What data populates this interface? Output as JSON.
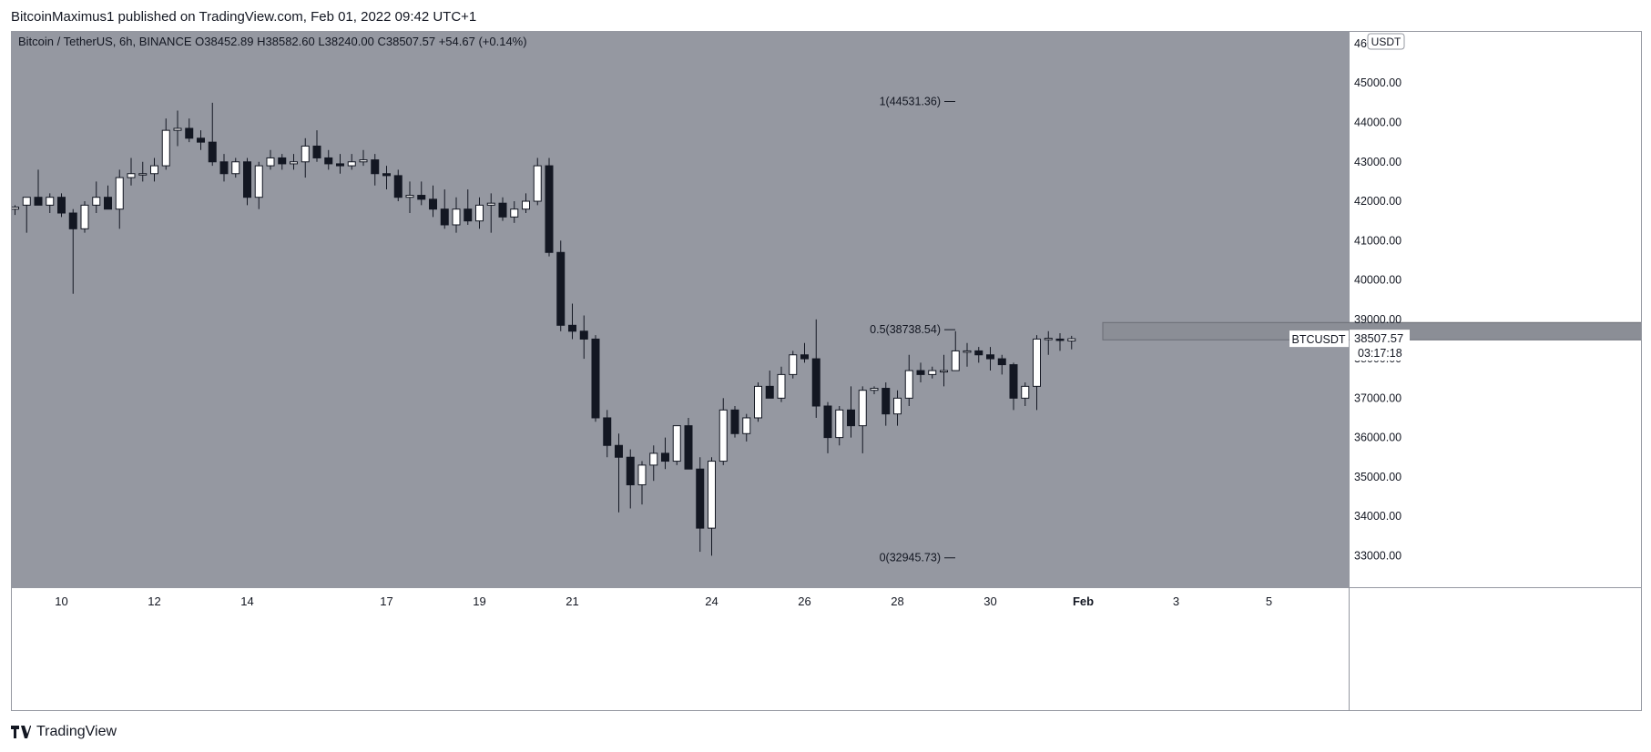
{
  "header": {
    "published_line": "BitcoinMaximus1 published on TradingView.com, Feb 01, 2022 09:42 UTC+1"
  },
  "legend": {
    "symbol_title": "Bitcoin / TetherUS, 6h, BINANCE",
    "o_label": "O",
    "o_value": "38452.89",
    "h_label": "H",
    "h_value": "38582.60",
    "l_label": "L",
    "l_value": "38240.00",
    "c_label": "C",
    "c_value": "38507.57",
    "change": "+54.67 (+0.14%)"
  },
  "price_axis": {
    "currency": "USDT",
    "ticks": [
      "46000.00",
      "45000.00",
      "44000.00",
      "43000.00",
      "42000.00",
      "41000.00",
      "40000.00",
      "39000.00",
      "38000.00",
      "37000.00",
      "36000.00",
      "35000.00",
      "34000.00",
      "33000.00"
    ]
  },
  "symbol_tag": "BTCUSDT",
  "last_price": {
    "value": "38507.57",
    "countdown": "03:17:18"
  },
  "fib_levels": [
    {
      "label": "1(44531.36)",
      "price": 44531.36
    },
    {
      "label": "0.5(38738.54)",
      "price": 38738.54
    },
    {
      "label": "0(32945.73)",
      "price": 32945.73
    }
  ],
  "resistance_zone": {
    "low": 38480,
    "high": 38920,
    "start_index": 94,
    "end_period_index": 210
  },
  "time_axis": {
    "labels": [
      {
        "text": "10",
        "index": 4
      },
      {
        "text": "12",
        "index": 12
      },
      {
        "text": "14",
        "index": 20
      },
      {
        "text": "17",
        "index": 32
      },
      {
        "text": "19",
        "index": 40
      },
      {
        "text": "21",
        "index": 48
      },
      {
        "text": "24",
        "index": 60
      },
      {
        "text": "26",
        "index": 68
      },
      {
        "text": "28",
        "index": 76
      },
      {
        "text": "30",
        "index": 84
      },
      {
        "text": "Feb",
        "index": 92,
        "bold": true
      },
      {
        "text": "3",
        "index": 100
      },
      {
        "text": "5",
        "index": 108
      }
    ]
  },
  "footer": {
    "brand": "TradingView"
  },
  "colors": {
    "plot_background": "#9598a1",
    "axis_background": "#ffffff",
    "up_candle_body": "#ffffff",
    "down_candle_body": "#131722",
    "wick": "#131722",
    "zone_fill": "#8b8e96",
    "tag_background": "#ffffff",
    "text": "#131722"
  },
  "chart_data": {
    "type": "candlestick",
    "title": "Bitcoin / TetherUS, 6h, BINANCE",
    "timeframe": "6h",
    "ylim": [
      32200,
      46300
    ],
    "start_index": 0,
    "candles": [
      [
        41800,
        41900,
        41650,
        41850
      ],
      [
        41900,
        42000,
        41200,
        42100
      ],
      [
        42100,
        42800,
        41900,
        41900
      ],
      [
        41900,
        42200,
        41700,
        42100
      ],
      [
        42100,
        42200,
        41600,
        41700
      ],
      [
        41700,
        41800,
        39650,
        41300
      ],
      [
        41300,
        42000,
        41200,
        41900
      ],
      [
        41900,
        42500,
        41700,
        42100
      ],
      [
        42100,
        42400,
        41800,
        41800
      ],
      [
        41800,
        42800,
        41300,
        42600
      ],
      [
        42600,
        43100,
        42400,
        42700
      ],
      [
        42700,
        43000,
        42500,
        42700
      ],
      [
        42700,
        43100,
        42500,
        42900
      ],
      [
        42900,
        44100,
        42800,
        43800
      ],
      [
        43800,
        44300,
        43400,
        43850
      ],
      [
        43850,
        44100,
        43500,
        43600
      ],
      [
        43600,
        43800,
        43300,
        43500
      ],
      [
        43500,
        44500,
        42900,
        43000
      ],
      [
        43000,
        43200,
        42500,
        42700
      ],
      [
        42700,
        43100,
        42600,
        43000
      ],
      [
        43000,
        43100,
        41900,
        42100
      ],
      [
        42100,
        43000,
        41800,
        42900
      ],
      [
        42900,
        43300,
        42800,
        43100
      ],
      [
        43100,
        43200,
        42800,
        42950
      ],
      [
        42950,
        43200,
        42800,
        43000
      ],
      [
        43000,
        43600,
        42600,
        43400
      ],
      [
        43400,
        43800,
        43000,
        43100
      ],
      [
        43100,
        43300,
        42800,
        42950
      ],
      [
        42950,
        43200,
        42700,
        42900
      ],
      [
        42900,
        43200,
        42800,
        43000
      ],
      [
        43000,
        43300,
        42900,
        43050
      ],
      [
        43050,
        43200,
        42400,
        42700
      ],
      [
        42700,
        42900,
        42300,
        42650
      ],
      [
        42650,
        42800,
        42000,
        42100
      ],
      [
        42100,
        42500,
        41700,
        42150
      ],
      [
        42150,
        42500,
        41900,
        42050
      ],
      [
        42050,
        42400,
        41600,
        41800
      ],
      [
        41800,
        42300,
        41300,
        41400
      ],
      [
        41400,
        42100,
        41200,
        41800
      ],
      [
        41800,
        42300,
        41400,
        41500
      ],
      [
        41500,
        42100,
        41300,
        41900
      ],
      [
        41900,
        42200,
        41200,
        41950
      ],
      [
        41950,
        42100,
        41500,
        41600
      ],
      [
        41600,
        42000,
        41450,
        41800
      ],
      [
        41800,
        42200,
        41700,
        42000
      ],
      [
        42000,
        43100,
        41900,
        42900
      ],
      [
        42900,
        43100,
        40600,
        40700
      ],
      [
        40700,
        41000,
        38700,
        38850
      ],
      [
        38850,
        39400,
        38500,
        38700
      ],
      [
        38700,
        39100,
        38000,
        38500
      ],
      [
        38500,
        38600,
        36400,
        36500
      ],
      [
        36500,
        36700,
        35500,
        35800
      ],
      [
        35800,
        36100,
        34100,
        35500
      ],
      [
        35500,
        35700,
        34200,
        34800
      ],
      [
        34800,
        35400,
        34300,
        35300
      ],
      [
        35300,
        35800,
        34900,
        35600
      ],
      [
        35600,
        36000,
        35200,
        35400
      ],
      [
        35400,
        36200,
        35300,
        36300
      ],
      [
        36300,
        36500,
        35300,
        35200
      ],
      [
        35200,
        35500,
        33100,
        33700
      ],
      [
        33700,
        35500,
        33000,
        35400
      ],
      [
        35400,
        37000,
        35300,
        36700
      ],
      [
        36700,
        36800,
        36000,
        36100
      ],
      [
        36100,
        36600,
        35900,
        36500
      ],
      [
        36500,
        37400,
        36400,
        37300
      ],
      [
        37300,
        37700,
        37000,
        37000
      ],
      [
        37000,
        37800,
        36900,
        37600
      ],
      [
        37600,
        38200,
        37500,
        38100
      ],
      [
        38100,
        38400,
        37900,
        38000
      ],
      [
        38000,
        39000,
        36500,
        36800
      ],
      [
        36800,
        36900,
        35600,
        36000
      ],
      [
        36000,
        36800,
        35800,
        36700
      ],
      [
        36700,
        37300,
        36000,
        36300
      ],
      [
        36300,
        37300,
        35600,
        37200
      ],
      [
        37200,
        37300,
        37100,
        37250
      ],
      [
        37250,
        37400,
        36300,
        36600
      ],
      [
        36600,
        37200,
        36300,
        37000
      ],
      [
        37000,
        38100,
        36800,
        37700
      ],
      [
        37700,
        37900,
        37400,
        37600
      ],
      [
        37600,
        37800,
        37500,
        37700
      ],
      [
        37700,
        38100,
        37300,
        37700
      ],
      [
        37700,
        38700,
        37700,
        38200
      ],
      [
        38200,
        38400,
        37800,
        38200
      ],
      [
        38200,
        38300,
        37900,
        38100
      ],
      [
        38100,
        38300,
        37700,
        38000
      ],
      [
        38000,
        38100,
        37600,
        37850
      ],
      [
        37850,
        37900,
        36700,
        37000
      ],
      [
        37000,
        37400,
        36800,
        37300
      ],
      [
        37300,
        38600,
        36700,
        38500
      ],
      [
        38500,
        38700,
        38100,
        38520
      ],
      [
        38500,
        38650,
        38200,
        38480
      ],
      [
        38452.89,
        38582.6,
        38240.0,
        38507.57
      ]
    ]
  }
}
